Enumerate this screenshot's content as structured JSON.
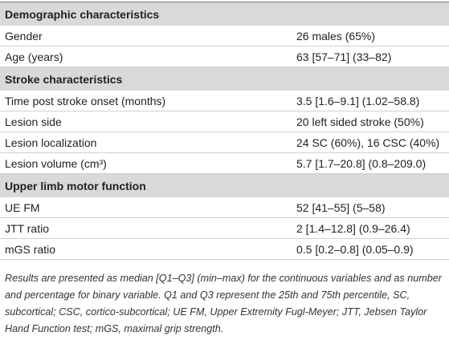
{
  "table": {
    "sections": [
      {
        "title": "Demographic characteristics",
        "rows": [
          [
            "Gender",
            "26 males (65%)"
          ],
          [
            "Age (years)",
            "63 [57–71] (33–82)"
          ]
        ]
      },
      {
        "title": "Stroke characteristics",
        "rows": [
          [
            "Time post stroke onset (months)",
            "3.5 [1.6–9.1] (1.02–58.8)"
          ],
          [
            "Lesion side",
            "20 left sided stroke (50%)"
          ],
          [
            "Lesion localization",
            "24 SC (60%), 16 CSC (40%)"
          ],
          [
            "Lesion volume (cm³)",
            "5.7 [1.7–20.8] (0.8–209.0)"
          ]
        ]
      },
      {
        "title": "Upper limb motor function",
        "rows": [
          [
            "UE FM",
            "52 [41–55] (5–58)"
          ],
          [
            "JTT ratio",
            "2 [1.4–12.8] (0.9–26.4)"
          ],
          [
            "mGS ratio",
            "0.5 [0.2–0.8] (0.05–0.9)"
          ]
        ]
      }
    ]
  },
  "footnote": "Results are presented as median [Q1–Q3] (min–max) for the continuous variables and as number and percentage for binary variable. Q1 and Q3 represent the 25th and 75th percentile, SC, subcortical; CSC, cortico-subcortical; UE FM, Upper Extremity Fugl-Meyer; JTT, Jebsen Taylor Hand Function test; mGS, maximal grip strength."
}
